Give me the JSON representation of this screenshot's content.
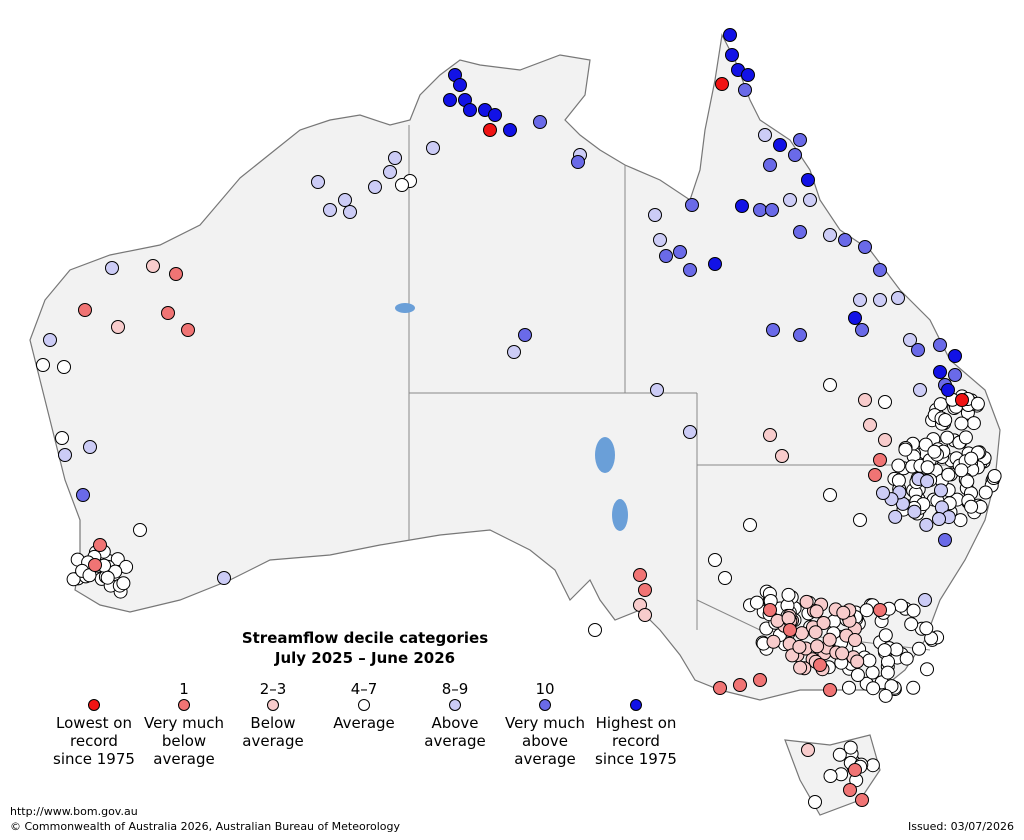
{
  "legend": {
    "title": "Streamflow decile categories",
    "subtitle": "July 2025 – June 2026",
    "items": [
      {
        "decile": null,
        "lines": [
          "Lowest on",
          "record",
          "since 1975"
        ],
        "color": "#f01414"
      },
      {
        "decile": "1",
        "lines": [
          "Very much",
          "below",
          "average"
        ],
        "color": "#f07474"
      },
      {
        "decile": "2–3",
        "lines": [
          "Below",
          "average"
        ],
        "color": "#f8cccc"
      },
      {
        "decile": "4–7",
        "lines": [
          "Average"
        ],
        "color": "#ffffff"
      },
      {
        "decile": "8–9",
        "lines": [
          "Above",
          "average"
        ],
        "color": "#ccccf6"
      },
      {
        "decile": "10",
        "lines": [
          "Very much",
          "above",
          "average"
        ],
        "color": "#6a6ae8"
      },
      {
        "decile": null,
        "lines": [
          "Highest on",
          "record",
          "since 1975"
        ],
        "color": "#1212e6"
      }
    ]
  },
  "footer": {
    "url": "http://www.bom.gov.au",
    "copyright": "© Commonwealth of Australia 2026, Australian Bureau of Meteorology",
    "issued": "Issued: 03/07/2026"
  }
}
